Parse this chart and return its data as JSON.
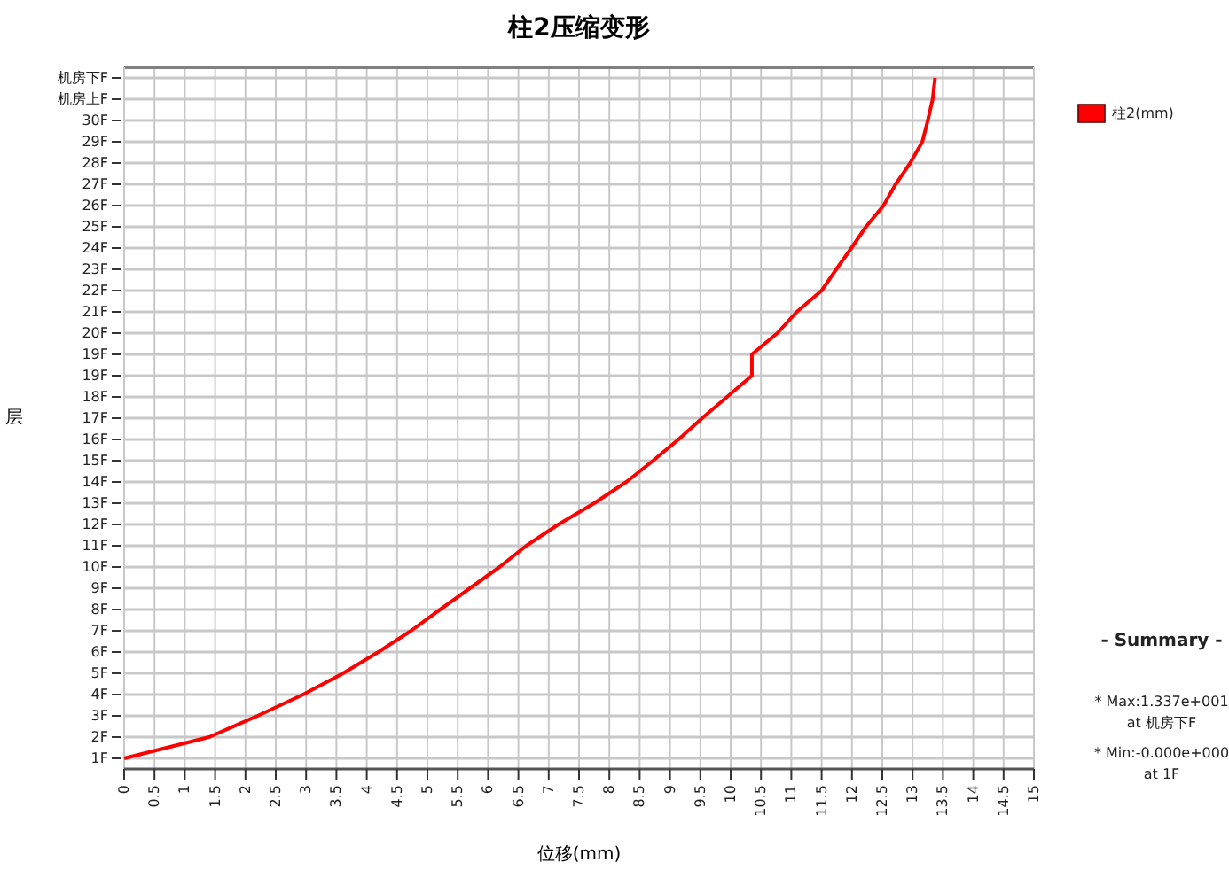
{
  "chart_data": {
    "type": "line",
    "orientation": "horizontal",
    "title": "柱2压缩变形",
    "xlabel": "位移(mm)",
    "ylabel": "层",
    "categories": [
      "机房下F",
      "机房上F",
      "30F",
      "29F",
      "28F",
      "27F",
      "26F",
      "25F",
      "24F",
      "23F",
      "22F",
      "21F",
      "20F",
      "19F",
      "19F",
      "18F",
      "17F",
      "16F",
      "15F",
      "14F",
      "13F",
      "12F",
      "11F",
      "10F",
      "9F",
      "8F",
      "7F",
      "6F",
      "5F",
      "4F",
      "3F",
      "2F",
      "1F"
    ],
    "series": [
      {
        "name": "柱2(mm)",
        "color": "#ff0000",
        "values": [
          13.37,
          13.33,
          13.25,
          13.16,
          12.96,
          12.72,
          12.52,
          12.23,
          11.99,
          11.74,
          11.5,
          11.09,
          10.77,
          10.35,
          10.35,
          9.94,
          9.53,
          9.14,
          8.72,
          8.28,
          7.75,
          7.16,
          6.63,
          6.19,
          5.7,
          5.21,
          4.73,
          4.19,
          3.61,
          2.95,
          2.2,
          1.4,
          0
        ]
      }
    ],
    "xlim": [
      0,
      15
    ],
    "xticks": [
      0,
      0.5,
      1,
      1.5,
      2,
      2.5,
      3,
      3.5,
      4,
      4.5,
      5,
      5.5,
      6,
      6.5,
      7,
      7.5,
      8,
      8.5,
      9,
      9.5,
      10,
      10.5,
      11,
      11.5,
      12,
      12.5,
      13,
      13.5,
      14,
      14.5,
      15
    ],
    "grid": true,
    "legend": "right",
    "annotations": [
      "- Summary -",
      "* Max:1.337e+001",
      "at 机房下F",
      "* Min:-0.000e+000",
      "at 1F"
    ]
  }
}
